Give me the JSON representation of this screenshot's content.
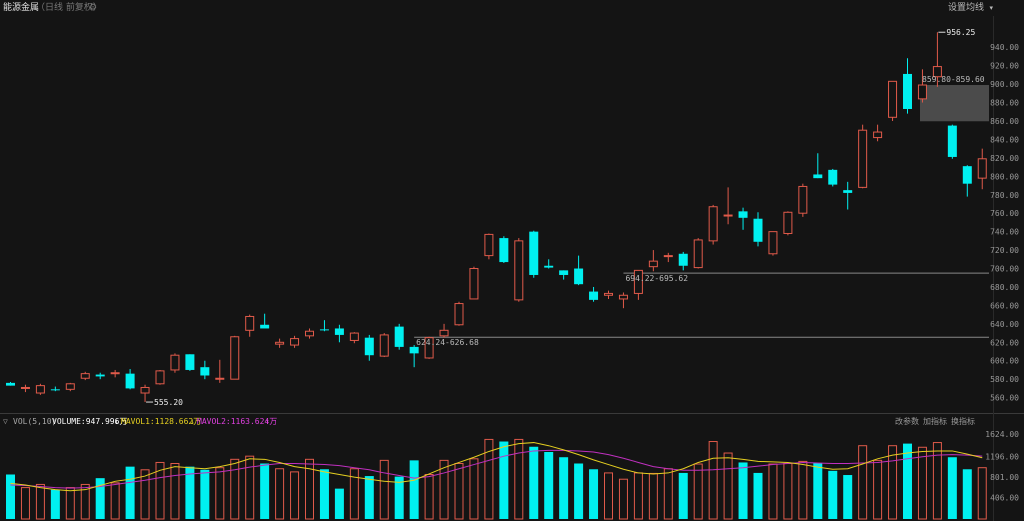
{
  "header": {
    "title": "能源金属",
    "subtitle": "（日线 前复权）",
    "gear_icon": "gear-icon",
    "settings_label": "设置均线",
    "settings_arrow": "▾"
  },
  "volume_header": {
    "collapse_icon": "▽",
    "vol_label": "VOL(5,10)",
    "volume": "VOLUME:947.996万",
    "volume_arrow": "↓",
    "mavol1": "MAVOL1:1128.662万",
    "mavol1_arrow": "↓",
    "mavol2": "MAVOL2:1163.624万",
    "mavol2_arrow": "↑",
    "tools": [
      "改参数",
      "加指标",
      "换指标"
    ]
  },
  "colors": {
    "up": "#e05a4a",
    "down": "#00f0f0",
    "ma5": "#e6d020",
    "ma10": "#c030c0",
    "mavol2_text": "#e040e0",
    "mavol1_text": "#e6d020"
  },
  "chart_data": [
    {
      "type": "candlestick",
      "y_ticks": [
        "940.00",
        "920.00",
        "900.00",
        "880.00",
        "860.00",
        "840.00",
        "820.00",
        "800.00",
        "780.00",
        "760.00",
        "740.00",
        "720.00",
        "700.00",
        "680.00",
        "660.00",
        "640.00",
        "620.00",
        "600.00",
        "580.00",
        "560.00"
      ],
      "ylim": [
        552,
        963
      ],
      "annotations": {
        "high": "956.25",
        "low": "555.20",
        "gap1": "624.24-626.68",
        "gap2": "694.22-695.62",
        "gap3": "859.80-859.60"
      },
      "gap_lines": [
        625.5,
        695
      ],
      "gap_box": [
        859.7,
        899
      ],
      "candles": [
        {
          "o": 576,
          "h": 577,
          "l": 573,
          "c": 573
        },
        {
          "o": 570,
          "h": 574,
          "l": 566,
          "c": 571
        },
        {
          "o": 565,
          "h": 575,
          "l": 563,
          "c": 573
        },
        {
          "o": 569,
          "h": 572,
          "l": 567,
          "c": 568
        },
        {
          "o": 569,
          "h": 576,
          "l": 567,
          "c": 575
        },
        {
          "o": 581,
          "h": 588,
          "l": 579,
          "c": 586
        },
        {
          "o": 585,
          "h": 587,
          "l": 580,
          "c": 583
        },
        {
          "o": 586,
          "h": 590,
          "l": 582,
          "c": 587
        },
        {
          "o": 586,
          "h": 591,
          "l": 569,
          "c": 570
        },
        {
          "o": 565,
          "h": 574,
          "l": 555.2,
          "c": 571
        },
        {
          "o": 575,
          "h": 590,
          "l": 574,
          "c": 589
        },
        {
          "o": 590,
          "h": 608,
          "l": 587,
          "c": 606
        },
        {
          "o": 607,
          "h": 607,
          "l": 589,
          "c": 590
        },
        {
          "o": 593,
          "h": 600,
          "l": 580,
          "c": 584
        },
        {
          "o": 580,
          "h": 601,
          "l": 576,
          "c": 581
        },
        {
          "o": 580,
          "h": 627,
          "l": 580,
          "c": 626
        },
        {
          "o": 633,
          "h": 650,
          "l": 626,
          "c": 648
        },
        {
          "o": 639,
          "h": 651,
          "l": 636,
          "c": 635
        },
        {
          "o": 618,
          "h": 624,
          "l": 614,
          "c": 620
        },
        {
          "o": 617,
          "h": 627,
          "l": 614,
          "c": 624
        },
        {
          "o": 627,
          "h": 635,
          "l": 624,
          "c": 632
        },
        {
          "o": 634,
          "h": 644,
          "l": 632,
          "c": 633
        },
        {
          "o": 635,
          "h": 639,
          "l": 620,
          "c": 628
        },
        {
          "o": 622,
          "h": 631,
          "l": 619,
          "c": 630
        },
        {
          "o": 625,
          "h": 628,
          "l": 600,
          "c": 606
        },
        {
          "o": 605,
          "h": 630,
          "l": 604,
          "c": 628
        },
        {
          "o": 637,
          "h": 640,
          "l": 612,
          "c": 615
        },
        {
          "o": 615,
          "h": 617,
          "l": 593,
          "c": 608
        },
        {
          "o": 603,
          "h": 626,
          "l": 602,
          "c": 625
        },
        {
          "o": 627,
          "h": 640,
          "l": 625,
          "c": 633
        },
        {
          "o": 639,
          "h": 664,
          "l": 638,
          "c": 662
        },
        {
          "o": 667,
          "h": 702,
          "l": 667,
          "c": 700
        },
        {
          "o": 714,
          "h": 738,
          "l": 710,
          "c": 737
        },
        {
          "o": 733,
          "h": 735,
          "l": 706,
          "c": 707
        },
        {
          "o": 666,
          "h": 733,
          "l": 664,
          "c": 730
        },
        {
          "o": 740,
          "h": 741,
          "l": 690,
          "c": 693
        },
        {
          "o": 703,
          "h": 710,
          "l": 700,
          "c": 701
        },
        {
          "o": 698,
          "h": 698,
          "l": 688,
          "c": 693
        },
        {
          "o": 700,
          "h": 714,
          "l": 682,
          "c": 683
        },
        {
          "o": 675,
          "h": 680,
          "l": 664,
          "c": 666
        },
        {
          "o": 671,
          "h": 676,
          "l": 667,
          "c": 673
        },
        {
          "o": 667,
          "h": 674,
          "l": 657,
          "c": 671
        },
        {
          "o": 673,
          "h": 698,
          "l": 666,
          "c": 698
        },
        {
          "o": 702,
          "h": 720,
          "l": 697,
          "c": 708
        },
        {
          "o": 713,
          "h": 717,
          "l": 707,
          "c": 714
        },
        {
          "o": 716,
          "h": 718,
          "l": 698,
          "c": 703
        },
        {
          "o": 701,
          "h": 733,
          "l": 700,
          "c": 731
        },
        {
          "o": 730,
          "h": 769,
          "l": 726,
          "c": 767
        },
        {
          "o": 758,
          "h": 788,
          "l": 748,
          "c": 758
        },
        {
          "o": 762,
          "h": 766,
          "l": 742,
          "c": 755
        },
        {
          "o": 754,
          "h": 761,
          "l": 724,
          "c": 729
        },
        {
          "o": 716,
          "h": 740,
          "l": 714,
          "c": 740
        },
        {
          "o": 738,
          "h": 762,
          "l": 736,
          "c": 761
        },
        {
          "o": 760,
          "h": 792,
          "l": 756,
          "c": 789
        },
        {
          "o": 802,
          "h": 825,
          "l": 798,
          "c": 798
        },
        {
          "o": 807,
          "h": 808,
          "l": 789,
          "c": 791
        },
        {
          "o": 785,
          "h": 794,
          "l": 764,
          "c": 782
        },
        {
          "o": 788,
          "h": 856,
          "l": 787,
          "c": 850
        },
        {
          "o": 842,
          "h": 856,
          "l": 838,
          "c": 848
        },
        {
          "o": 864,
          "h": 903,
          "l": 860,
          "c": 903
        },
        {
          "o": 911,
          "h": 928,
          "l": 868,
          "c": 873
        },
        {
          "o": 884,
          "h": 916,
          "l": 880,
          "c": 899
        },
        {
          "o": 908,
          "h": 956.25,
          "l": 897,
          "c": 919
        },
        {
          "o": 855,
          "h": 856,
          "l": 819,
          "c": 821
        },
        {
          "o": 811,
          "h": 812,
          "l": 778,
          "c": 792
        },
        {
          "o": 798,
          "h": 830,
          "l": 786,
          "c": 819
        }
      ]
    },
    {
      "type": "bar",
      "name": "VOL",
      "y_ticks": [
        "1624.00",
        "1196.00",
        "801.00",
        "406.00"
      ],
      "ylim": [
        0,
        1700
      ],
      "ma5": [
        680,
        650,
        600,
        560,
        540,
        560,
        640,
        720,
        760,
        820,
        930,
        1000,
        980,
        960,
        1000,
        1060,
        1150,
        1140,
        1080,
        1000,
        960,
        900,
        850,
        800,
        760,
        720,
        700,
        740,
        860,
        980,
        1080,
        1180,
        1290,
        1380,
        1440,
        1460,
        1400,
        1320,
        1230,
        1130,
        1040,
        950,
        880,
        860,
        880,
        960,
        1080,
        1160,
        1170,
        1140,
        1100,
        1090,
        1080,
        1040,
        990,
        950,
        960,
        1050,
        1150,
        1220,
        1260,
        1290,
        1300,
        1300,
        1240,
        1170
      ],
      "ma10": [
        650,
        640,
        620,
        600,
        590,
        600,
        620,
        660,
        700,
        740,
        790,
        830,
        860,
        880,
        900,
        940,
        990,
        1030,
        1060,
        1060,
        1050,
        1040,
        1020,
        980,
        940,
        880,
        830,
        780,
        810,
        880,
        960,
        1040,
        1120,
        1200,
        1260,
        1300,
        1310,
        1310,
        1300,
        1280,
        1230,
        1160,
        1080,
        1000,
        960,
        930,
        930,
        940,
        960,
        980,
        1010,
        1040,
        1060,
        1080,
        1070,
        1060,
        1060,
        1070,
        1080,
        1110,
        1150,
        1190,
        1220,
        1230,
        1220,
        1200
      ],
      "values": [
        850,
        600,
        660,
        560,
        600,
        660,
        780,
        690,
        1000,
        940,
        1080,
        1060,
        1000,
        940,
        980,
        1140,
        1200,
        1060,
        960,
        900,
        1140,
        950,
        580,
        960,
        820,
        1120,
        810,
        1120,
        850,
        1120,
        1060,
        1150,
        1520,
        1480,
        1520,
        1380,
        1280,
        1180,
        1060,
        950,
        880,
        760,
        880,
        870,
        960,
        880,
        1050,
        1480,
        1260,
        1080,
        880,
        1050,
        1060,
        1100,
        1070,
        920,
        840,
        1400,
        1120,
        1400,
        1440,
        1370,
        1460,
        1180,
        950,
        980
      ]
    }
  ]
}
